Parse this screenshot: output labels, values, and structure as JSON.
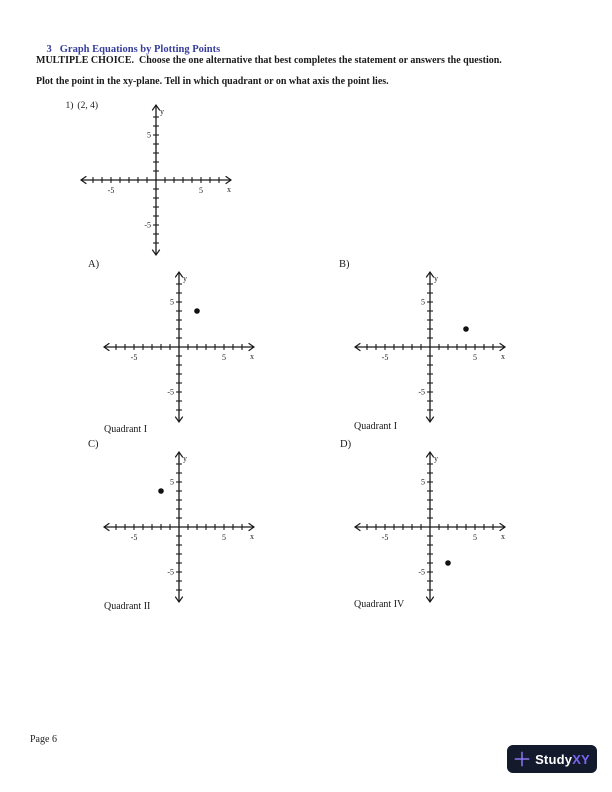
{
  "page": {
    "section_number": "3",
    "section_title": "Graph Equations by Plotting Points",
    "instructions": "MULTIPLE CHOICE.  Choose the one alternative that best completes the statement or answers the question.",
    "directions": "Plot the point in the xy-plane. Tell in which quadrant or on what axis the point lies.",
    "question": {
      "number": "1)",
      "point_text": "(2, 4)"
    },
    "page_number": "Page 6"
  },
  "options": [
    {
      "label": "A)",
      "answer": "Quadrant I"
    },
    {
      "label": "B)",
      "answer": "Quadrant I"
    },
    {
      "label": "C)",
      "answer": "Quadrant II"
    },
    {
      "label": "D)",
      "answer": "Quadrant IV"
    }
  ],
  "branding": {
    "name_primary": "Study",
    "name_accent": "XY",
    "plus_icon": "plus-icon",
    "badge_bg": "#121a2c",
    "accent_color": "#7e63ef",
    "plus_color": "#8a76f2"
  },
  "colors": {
    "heading_blue": "#373e9b",
    "axis_color": "#1a1a1a",
    "point_color": "#111111"
  },
  "chart_data": [
    {
      "id": "question-graph",
      "type": "scatter",
      "xlabel": "x",
      "ylabel": "y",
      "xlim": [
        -8.3,
        8.3
      ],
      "ylim": [
        -8.3,
        8.3
      ],
      "tick_min": -7,
      "tick_max": 7,
      "tick_step": 1,
      "labeled_ticks": [
        -5,
        5
      ],
      "grid": false,
      "points": []
    },
    {
      "id": "option-a-graph",
      "type": "scatter",
      "xlabel": "x",
      "ylabel": "y",
      "xlim": [
        -8.3,
        8.3
      ],
      "ylim": [
        -8.3,
        8.3
      ],
      "tick_min": -7,
      "tick_max": 7,
      "tick_step": 1,
      "labeled_ticks": [
        -5,
        5
      ],
      "grid": false,
      "points": [
        [
          2,
          4
        ]
      ]
    },
    {
      "id": "option-b-graph",
      "type": "scatter",
      "xlabel": "x",
      "ylabel": "y",
      "xlim": [
        -8.3,
        8.3
      ],
      "ylim": [
        -8.3,
        8.3
      ],
      "tick_min": -7,
      "tick_max": 7,
      "tick_step": 1,
      "labeled_ticks": [
        -5,
        5
      ],
      "grid": false,
      "points": [
        [
          4,
          2
        ]
      ]
    },
    {
      "id": "option-c-graph",
      "type": "scatter",
      "xlabel": "x",
      "ylabel": "y",
      "xlim": [
        -8.3,
        8.3
      ],
      "ylim": [
        -8.3,
        8.3
      ],
      "tick_min": -7,
      "tick_max": 7,
      "tick_step": 1,
      "labeled_ticks": [
        -5,
        5
      ],
      "grid": false,
      "points": [
        [
          -2,
          4
        ]
      ]
    },
    {
      "id": "option-d-graph",
      "type": "scatter",
      "xlabel": "x",
      "ylabel": "y",
      "xlim": [
        -8.3,
        8.3
      ],
      "ylim": [
        -8.3,
        8.3
      ],
      "tick_min": -7,
      "tick_max": 7,
      "tick_step": 1,
      "labeled_ticks": [
        -5,
        5
      ],
      "grid": false,
      "points": [
        [
          2,
          -4
        ]
      ]
    }
  ]
}
